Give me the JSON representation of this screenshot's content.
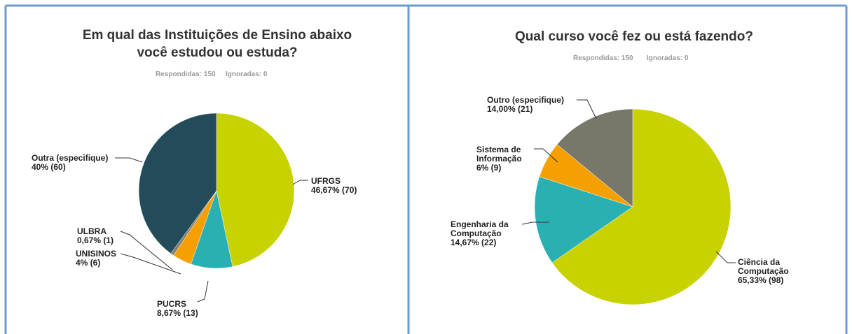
{
  "chart_data": [
    {
      "type": "pie",
      "title": "Em qual das Instituições de Ensino abaixo você estudou ou estuda?",
      "annotations": [
        "Respondidas: 150",
        "Ignoradas: 0"
      ],
      "categories": [
        "UFRGS",
        "PUCRS",
        "UNISINOS",
        "ULBRA",
        "Outra (especifique)"
      ],
      "values": [
        46.67,
        8.67,
        4,
        0.67,
        40
      ],
      "value_labels": [
        "46,67% (70)",
        "8,67% (13)",
        "4% (6)",
        "0,67% (1)",
        "40% (60)"
      ],
      "colors": [
        "#c8d200",
        "#2ab0b3",
        "#f5a000",
        "#7f7f72",
        "#234b5a"
      ]
    },
    {
      "type": "pie",
      "title": "Qual curso você fez ou está fazendo?",
      "annotations": [
        "Respondidas: 150",
        "Ignoradas: 0"
      ],
      "categories": [
        "Ciência da Computação",
        "Engenharia da Computação",
        "Sistema de Informação",
        "Outro (especifique)"
      ],
      "values": [
        65.33,
        14.67,
        6,
        14
      ],
      "value_labels": [
        "65,33% (98)",
        "14,67% (22)",
        "6% (9)",
        "14,00% (21)"
      ],
      "colors": [
        "#c8d200",
        "#2ab0b3",
        "#f5a000",
        "#77776a"
      ]
    }
  ]
}
